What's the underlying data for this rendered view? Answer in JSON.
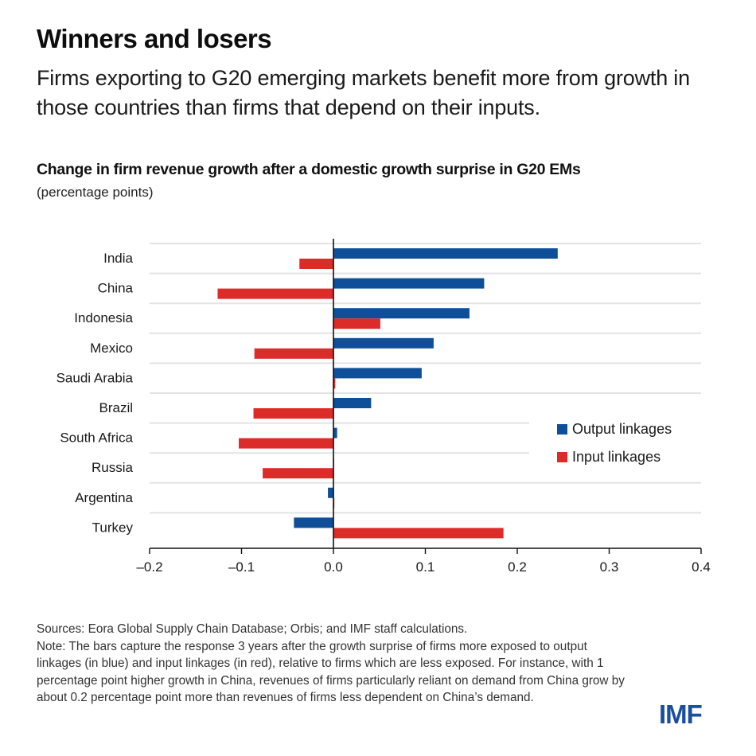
{
  "header": {
    "title": "Winners and losers",
    "subtitle": "Firms exporting to G20 emerging markets benefit more from growth in those countries than firms that depend on their inputs."
  },
  "chart_data": {
    "type": "bar",
    "orientation": "horizontal",
    "title": "Change in firm revenue growth after a domestic growth surprise in G20 EMs",
    "unit": "(percentage points)",
    "xlabel": "",
    "ylabel": "",
    "xlim": [
      -0.2,
      0.4
    ],
    "xticks": [
      -0.2,
      -0.1,
      0.0,
      0.1,
      0.2,
      0.3,
      0.4
    ],
    "xtick_labels": [
      "–0.2",
      "–0.1",
      "0.0",
      "0.1",
      "0.2",
      "0.3",
      "0.4"
    ],
    "grid": "horizontal separators between categories",
    "legend_position": "right",
    "categories": [
      "India",
      "China",
      "Indonesia",
      "Mexico",
      "Saudi Arabia",
      "Brazil",
      "South Africa",
      "Russia",
      "Argentina",
      "Turkey"
    ],
    "series": [
      {
        "name": "Output linkages",
        "color": "#0f4f9a",
        "values": [
          0.244,
          0.164,
          0.148,
          0.109,
          0.096,
          0.041,
          0.004,
          0.0,
          -0.006,
          -0.043
        ]
      },
      {
        "name": "Input linkages",
        "color": "#db2c29",
        "values": [
          -0.037,
          -0.126,
          0.051,
          -0.086,
          0.002,
          -0.087,
          -0.103,
          -0.077,
          0.001,
          0.185
        ]
      }
    ]
  },
  "footer": {
    "sources": "Sources: Eora Global Supply Chain Database; Orbis; and IMF staff calculations.",
    "note": "Note: The bars capture the response 3 years after the growth surprise of firms more exposed to output linkages (in blue) and input linkages (in red), relative to firms which are less exposed. For instance, with 1 percentage point higher growth in China, revenues of firms particularly reliant on demand from China grow by about 0.2 percentage point more than revenues of firms less dependent on China’s demand.",
    "logo": "IMF"
  }
}
